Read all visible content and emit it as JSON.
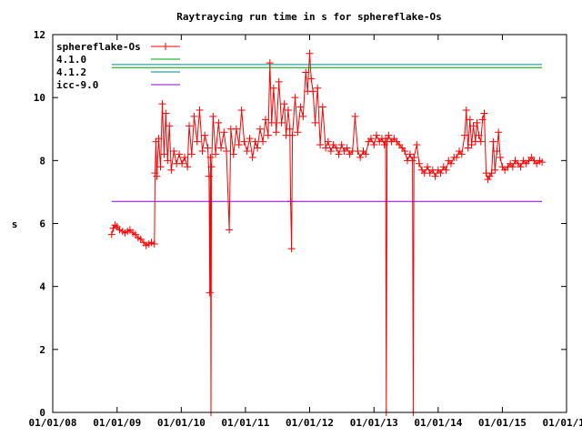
{
  "chart_data": {
    "type": "line",
    "title": "Raytraycing run time in s for sphereflake-Os",
    "xlabel": "",
    "ylabel": "s",
    "ylim": [
      0,
      12
    ],
    "y_ticks": [
      0,
      2,
      4,
      6,
      8,
      10,
      12
    ],
    "xlim": [
      "2008-01-01",
      "2016-01-01"
    ],
    "x_ticks": [
      "2008-01-01",
      "2009-01-01",
      "2010-01-01",
      "2011-01-01",
      "2012-01-01",
      "2013-01-01",
      "2014-01-01",
      "2015-01-01",
      "2016-01-01"
    ],
    "x_tick_labels": [
      "01/01/08",
      "01/01/09",
      "01/01/10",
      "01/01/11",
      "01/01/12",
      "01/01/13",
      "01/01/14",
      "01/01/15",
      "01/01/16"
    ],
    "y_tick_labels": [
      "0",
      "2",
      "4",
      "6",
      "8",
      "10",
      "12"
    ],
    "legend_position": "top-left",
    "grid": false,
    "series": [
      {
        "name": "sphereflake-Os",
        "color": "#ff0000",
        "marker": "plus",
        "points": [
          [
            "2008-12-01",
            5.65
          ],
          [
            "2008-12-10",
            5.85
          ],
          [
            "2008-12-20",
            5.95
          ],
          [
            "2009-01-01",
            5.9
          ],
          [
            "2009-01-15",
            5.8
          ],
          [
            "2009-02-01",
            5.75
          ],
          [
            "2009-02-15",
            5.7
          ],
          [
            "2009-03-01",
            5.75
          ],
          [
            "2009-03-15",
            5.8
          ],
          [
            "2009-04-01",
            5.7
          ],
          [
            "2009-04-15",
            5.65
          ],
          [
            "2009-05-01",
            5.55
          ],
          [
            "2009-05-15",
            5.5
          ],
          [
            "2009-06-01",
            5.4
          ],
          [
            "2009-06-15",
            5.3
          ],
          [
            "2009-07-01",
            5.35
          ],
          [
            "2009-07-15",
            5.4
          ],
          [
            "2009-08-01",
            5.35
          ],
          [
            "2009-08-05",
            7.6
          ],
          [
            "2009-08-10",
            8.6
          ],
          [
            "2009-08-15",
            7.5
          ],
          [
            "2009-08-25",
            8.7
          ],
          [
            "2009-09-05",
            7.8
          ],
          [
            "2009-09-15",
            9.8
          ],
          [
            "2009-09-25",
            8.2
          ],
          [
            "2009-10-05",
            9.5
          ],
          [
            "2009-10-15",
            8.0
          ],
          [
            "2009-10-25",
            9.1
          ],
          [
            "2009-11-05",
            7.7
          ],
          [
            "2009-11-20",
            8.3
          ],
          [
            "2009-12-05",
            7.9
          ],
          [
            "2009-12-20",
            8.2
          ],
          [
            "2010-01-05",
            7.9
          ],
          [
            "2010-01-20",
            8.1
          ],
          [
            "2010-02-05",
            7.8
          ],
          [
            "2010-02-15",
            9.1
          ],
          [
            "2010-03-01",
            8.2
          ],
          [
            "2010-03-15",
            9.4
          ],
          [
            "2010-04-01",
            8.6
          ],
          [
            "2010-04-15",
            9.6
          ],
          [
            "2010-05-01",
            8.3
          ],
          [
            "2010-05-15",
            8.8
          ],
          [
            "2010-06-01",
            8.4
          ],
          [
            "2010-06-08",
            7.5
          ],
          [
            "2010-06-12",
            3.8
          ],
          [
            "2010-06-16",
            8.1
          ],
          [
            "2010-06-19",
            0
          ],
          [
            "2010-06-22",
            7.8
          ],
          [
            "2010-07-01",
            9.4
          ],
          [
            "2010-07-15",
            8.2
          ],
          [
            "2010-08-01",
            9.2
          ],
          [
            "2010-08-15",
            8.4
          ],
          [
            "2010-09-01",
            8.9
          ],
          [
            "2010-09-15",
            8.3
          ],
          [
            "2010-10-01",
            5.8
          ],
          [
            "2010-10-10",
            9.0
          ],
          [
            "2010-10-25",
            8.2
          ],
          [
            "2010-11-10",
            9.0
          ],
          [
            "2010-11-25",
            8.5
          ],
          [
            "2010-12-10",
            9.6
          ],
          [
            "2010-12-25",
            8.6
          ],
          [
            "2011-01-10",
            8.3
          ],
          [
            "2011-01-25",
            8.7
          ],
          [
            "2011-02-10",
            8.1
          ],
          [
            "2011-02-25",
            8.6
          ],
          [
            "2011-03-10",
            8.4
          ],
          [
            "2011-03-25",
            9.0
          ],
          [
            "2011-04-10",
            8.6
          ],
          [
            "2011-04-25",
            9.3
          ],
          [
            "2011-05-10",
            8.8
          ],
          [
            "2011-05-20",
            11.1
          ],
          [
            "2011-05-30",
            9.2
          ],
          [
            "2011-06-10",
            10.3
          ],
          [
            "2011-06-25",
            8.9
          ],
          [
            "2011-07-10",
            10.5
          ],
          [
            "2011-07-25",
            9.2
          ],
          [
            "2011-08-10",
            9.8
          ],
          [
            "2011-08-20",
            8.8
          ],
          [
            "2011-09-01",
            9.6
          ],
          [
            "2011-09-10",
            9.0
          ],
          [
            "2011-09-15",
            6.7
          ],
          [
            "2011-09-20",
            5.2
          ],
          [
            "2011-09-25",
            8.8
          ],
          [
            "2011-10-10",
            10.0
          ],
          [
            "2011-10-25",
            8.9
          ],
          [
            "2011-11-10",
            9.7
          ],
          [
            "2011-11-25",
            9.4
          ],
          [
            "2011-12-10",
            10.8
          ],
          [
            "2011-12-20",
            10.2
          ],
          [
            "2012-01-01",
            11.4
          ],
          [
            "2012-01-10",
            10.6
          ],
          [
            "2012-01-20",
            10.2
          ],
          [
            "2012-02-01",
            9.2
          ],
          [
            "2012-02-15",
            10.3
          ],
          [
            "2012-03-01",
            8.5
          ],
          [
            "2012-03-15",
            9.7
          ],
          [
            "2012-04-01",
            8.4
          ],
          [
            "2012-04-15",
            8.6
          ],
          [
            "2012-05-01",
            8.3
          ],
          [
            "2012-05-15",
            8.5
          ],
          [
            "2012-06-01",
            8.4
          ],
          [
            "2012-06-15",
            8.2
          ],
          [
            "2012-07-01",
            8.5
          ],
          [
            "2012-07-15",
            8.3
          ],
          [
            "2012-08-01",
            8.4
          ],
          [
            "2012-08-15",
            8.2
          ],
          [
            "2012-09-01",
            8.3
          ],
          [
            "2012-09-15",
            9.4
          ],
          [
            "2012-10-01",
            8.3
          ],
          [
            "2012-10-15",
            8.1
          ],
          [
            "2012-11-01",
            8.3
          ],
          [
            "2012-11-15",
            8.2
          ],
          [
            "2012-12-01",
            8.6
          ],
          [
            "2012-12-15",
            8.7
          ],
          [
            "2013-01-01",
            8.5
          ],
          [
            "2013-01-15",
            8.8
          ],
          [
            "2013-02-01",
            8.6
          ],
          [
            "2013-02-15",
            8.7
          ],
          [
            "2013-03-01",
            8.5
          ],
          [
            "2013-03-08",
            8.7
          ],
          [
            "2013-03-12",
            0
          ],
          [
            "2013-03-16",
            8.6
          ],
          [
            "2013-03-25",
            8.8
          ],
          [
            "2013-04-10",
            8.6
          ],
          [
            "2013-04-25",
            8.7
          ],
          [
            "2013-05-10",
            8.6
          ],
          [
            "2013-05-25",
            8.5
          ],
          [
            "2013-06-10",
            8.4
          ],
          [
            "2013-06-25",
            8.3
          ],
          [
            "2013-07-10",
            8.0
          ],
          [
            "2013-07-25",
            8.2
          ],
          [
            "2013-08-08",
            8.0
          ],
          [
            "2013-08-12",
            0
          ],
          [
            "2013-08-16",
            8.1
          ],
          [
            "2013-09-01",
            8.5
          ],
          [
            "2013-09-15",
            7.9
          ],
          [
            "2013-10-01",
            7.7
          ],
          [
            "2013-10-15",
            7.6
          ],
          [
            "2013-11-01",
            7.8
          ],
          [
            "2013-11-15",
            7.6
          ],
          [
            "2013-12-01",
            7.7
          ],
          [
            "2013-12-15",
            7.5
          ],
          [
            "2014-01-01",
            7.7
          ],
          [
            "2014-01-15",
            7.6
          ],
          [
            "2014-02-01",
            7.8
          ],
          [
            "2014-02-15",
            7.7
          ],
          [
            "2014-03-01",
            8.0
          ],
          [
            "2014-03-15",
            7.9
          ],
          [
            "2014-04-01",
            8.1
          ],
          [
            "2014-04-15",
            8.1
          ],
          [
            "2014-05-01",
            8.3
          ],
          [
            "2014-05-15",
            8.2
          ],
          [
            "2014-06-01",
            8.8
          ],
          [
            "2014-06-10",
            9.6
          ],
          [
            "2014-06-20",
            8.4
          ],
          [
            "2014-07-01",
            9.3
          ],
          [
            "2014-07-10",
            8.5
          ],
          [
            "2014-07-20",
            9.1
          ],
          [
            "2014-08-01",
            8.6
          ],
          [
            "2014-08-10",
            9.2
          ],
          [
            "2014-08-20",
            8.8
          ],
          [
            "2014-09-01",
            8.6
          ],
          [
            "2014-09-10",
            9.3
          ],
          [
            "2014-09-20",
            9.5
          ],
          [
            "2014-10-01",
            7.6
          ],
          [
            "2014-10-10",
            7.4
          ],
          [
            "2014-10-20",
            7.5
          ],
          [
            "2014-11-01",
            7.6
          ],
          [
            "2014-11-10",
            8.6
          ],
          [
            "2014-11-20",
            7.7
          ],
          [
            "2014-12-01",
            8.3
          ],
          [
            "2014-12-10",
            8.9
          ],
          [
            "2014-12-20",
            8.1
          ],
          [
            "2015-01-01",
            7.8
          ],
          [
            "2015-01-15",
            7.7
          ],
          [
            "2015-02-01",
            7.8
          ],
          [
            "2015-02-15",
            7.9
          ],
          [
            "2015-03-01",
            7.8
          ],
          [
            "2015-03-15",
            8.0
          ],
          [
            "2015-04-01",
            7.9
          ],
          [
            "2015-04-15",
            7.8
          ],
          [
            "2015-05-01",
            8.0
          ],
          [
            "2015-05-15",
            7.9
          ],
          [
            "2015-06-01",
            8.0
          ],
          [
            "2015-06-15",
            8.1
          ],
          [
            "2015-07-01",
            8.0
          ],
          [
            "2015-07-15",
            7.9
          ],
          [
            "2015-08-01",
            8.0
          ],
          [
            "2015-08-15",
            7.95
          ]
        ]
      },
      {
        "name": "4.1.0",
        "color": "#00a000",
        "marker": "none",
        "points": [
          [
            "2008-12-01",
            10.95
          ],
          [
            "2015-08-15",
            10.95
          ]
        ]
      },
      {
        "name": "4.1.2",
        "color": "#008b8b",
        "marker": "none",
        "points": [
          [
            "2008-12-01",
            11.05
          ],
          [
            "2015-08-15",
            11.05
          ]
        ]
      },
      {
        "name": "icc-9.0",
        "color": "#9400d3",
        "marker": "none",
        "points": [
          [
            "2008-12-01",
            6.7
          ],
          [
            "2015-08-15",
            6.7
          ]
        ]
      }
    ]
  }
}
